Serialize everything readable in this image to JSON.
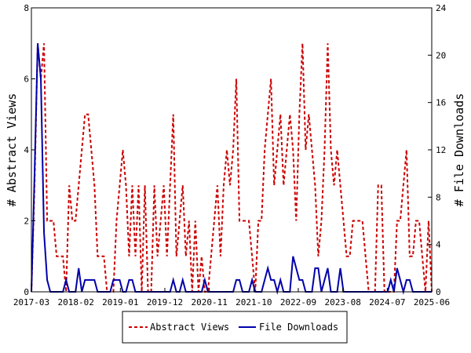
{
  "chart_data": {
    "type": "line",
    "x_ticks": [
      "2017-03",
      "2018-02",
      "2019-01",
      "2019-12",
      "2020-11",
      "2021-10",
      "2022-09",
      "2023-08",
      "2024-07",
      "2025-06"
    ],
    "ylabel": "# Abstract Views",
    "y2label": "# File Downloads",
    "ylim": [
      0,
      8
    ],
    "y2lim": [
      0,
      24
    ],
    "y_ticks": [
      "0",
      "2",
      "4",
      "6",
      "8"
    ],
    "y2_ticks": [
      "0",
      "4",
      "8",
      "12",
      "16",
      "20",
      "24"
    ],
    "legend_position": "bottom",
    "series": [
      {
        "name": "Abstract Views",
        "axis": "left",
        "color": "#cc0000",
        "style": "dashed",
        "values": [
          0,
          3,
          7,
          6,
          7,
          2,
          2,
          2,
          1,
          1,
          1,
          0,
          3,
          2,
          2,
          3,
          4,
          5,
          5,
          4,
          3,
          1,
          1,
          1,
          0,
          0,
          0,
          2,
          3,
          4,
          3,
          1,
          3,
          1,
          3,
          0,
          3,
          0,
          0,
          3,
          1,
          2,
          3,
          1,
          3,
          5,
          1,
          2,
          3,
          1,
          2,
          0,
          2,
          0,
          1,
          0,
          0,
          1,
          2,
          3,
          1,
          3,
          4,
          3,
          4,
          6,
          2,
          2,
          2,
          2,
          1,
          0,
          2,
          2,
          4,
          5,
          6,
          3,
          4,
          5,
          3,
          4,
          5,
          4,
          2,
          5,
          7,
          4,
          5,
          4,
          3,
          1,
          2,
          4,
          7,
          4,
          3,
          4,
          3,
          2,
          1,
          1,
          2,
          2,
          2,
          2,
          1,
          0,
          0,
          0,
          3,
          3,
          0,
          0,
          0,
          0,
          2,
          2,
          3,
          4,
          1,
          1,
          2,
          2,
          1,
          0,
          2,
          0
        ]
      },
      {
        "name": "File Downloads",
        "axis": "right",
        "color": "#0000aa",
        "style": "solid",
        "values": [
          0,
          10,
          21,
          18,
          5,
          1,
          0,
          0,
          0,
          0,
          0,
          1,
          0,
          0,
          0,
          2,
          0,
          1,
          1,
          1,
          1,
          0,
          0,
          0,
          0,
          0,
          1,
          1,
          1,
          0,
          0,
          1,
          1,
          0,
          0,
          0,
          0,
          0,
          0,
          0,
          0,
          0,
          0,
          0,
          0,
          1,
          0,
          0,
          1,
          0,
          0,
          0,
          0,
          0,
          0,
          1,
          0,
          0,
          0,
          0,
          0,
          0,
          0,
          0,
          0,
          1,
          1,
          0,
          0,
          0,
          1,
          0,
          0,
          0,
          1,
          2,
          1,
          1,
          0,
          1,
          0,
          0,
          0,
          3,
          2,
          1,
          1,
          0,
          0,
          0,
          2,
          2,
          0,
          1,
          2,
          0,
          0,
          0,
          2,
          0,
          0,
          0,
          0,
          0,
          0,
          0,
          0,
          0,
          0,
          0,
          0,
          0,
          0,
          0,
          1,
          0,
          2,
          1,
          0,
          1,
          1,
          0,
          0,
          0,
          0,
          0,
          0,
          0
        ]
      }
    ]
  }
}
